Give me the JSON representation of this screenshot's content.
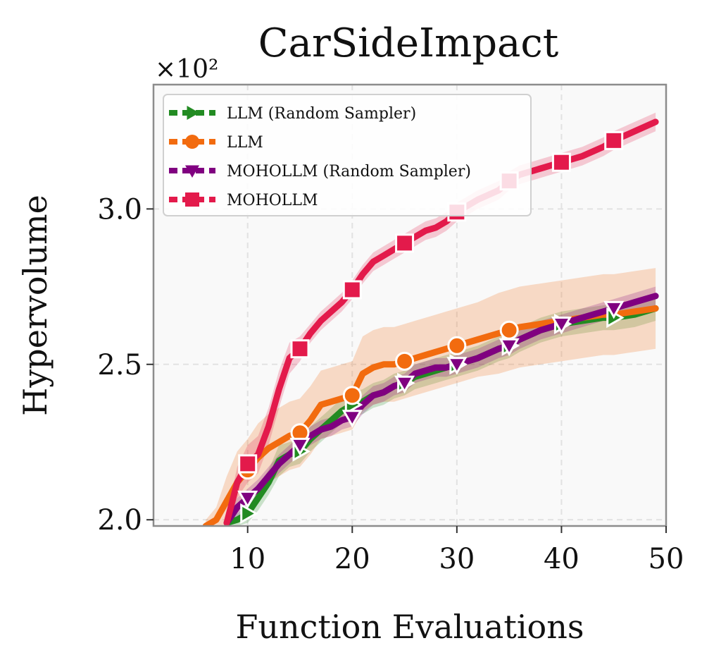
{
  "chart_data": {
    "type": "line",
    "title": "CarSideImpact",
    "xlabel": "Function Evaluations",
    "ylabel": "Hypervolume",
    "scale_label": "×10²",
    "xlim": [
      1,
      50
    ],
    "ylim": [
      1.98,
      3.4
    ],
    "x_ticks": [
      10,
      20,
      30,
      40,
      50
    ],
    "x_tick_labels": [
      "10",
      "20",
      "30",
      "40",
      "50"
    ],
    "y_ticks": [
      2.0,
      2.5,
      3.0
    ],
    "y_tick_labels": [
      "2.0",
      "2.5",
      "3.0"
    ],
    "grid": true,
    "legend_position": "top-left",
    "series": [
      {
        "name": "LLM (Random Sampler)",
        "color": "#228B22",
        "marker": "triangle-right",
        "dashed": true,
        "x": [
          8,
          9,
          10,
          11,
          12,
          13,
          14,
          15,
          16,
          17,
          18,
          19,
          20,
          21,
          22,
          23,
          24,
          25,
          26,
          27,
          28,
          29,
          30,
          32,
          34,
          35,
          36,
          38,
          40,
          42,
          44,
          45,
          47,
          49
        ],
        "values": [
          1.99,
          2.0,
          2.02,
          2.07,
          2.12,
          2.19,
          2.21,
          2.22,
          2.26,
          2.29,
          2.32,
          2.35,
          2.37,
          2.38,
          2.4,
          2.41,
          2.43,
          2.44,
          2.46,
          2.47,
          2.48,
          2.49,
          2.5,
          2.52,
          2.55,
          2.56,
          2.58,
          2.61,
          2.63,
          2.64,
          2.65,
          2.65,
          2.66,
          2.68
        ],
        "lower": [
          1.97,
          1.98,
          1.99,
          2.03,
          2.08,
          2.14,
          2.17,
          2.18,
          2.22,
          2.25,
          2.28,
          2.31,
          2.33,
          2.34,
          2.36,
          2.37,
          2.39,
          2.4,
          2.42,
          2.43,
          2.44,
          2.45,
          2.46,
          2.48,
          2.51,
          2.52,
          2.54,
          2.57,
          2.59,
          2.6,
          2.61,
          2.61,
          2.62,
          2.64
        ],
        "upper": [
          2.01,
          2.02,
          2.05,
          2.11,
          2.16,
          2.24,
          2.25,
          2.26,
          2.3,
          2.33,
          2.36,
          2.39,
          2.41,
          2.42,
          2.44,
          2.45,
          2.47,
          2.48,
          2.5,
          2.51,
          2.52,
          2.53,
          2.54,
          2.56,
          2.59,
          2.6,
          2.62,
          2.65,
          2.67,
          2.68,
          2.69,
          2.69,
          2.7,
          2.72
        ],
        "marker_x": [
          10,
          15,
          20,
          25,
          30,
          35,
          40,
          45
        ],
        "marker_values": [
          2.02,
          2.22,
          2.37,
          2.44,
          2.5,
          2.56,
          2.63,
          2.65
        ]
      },
      {
        "name": "LLM",
        "color": "#F26B0F",
        "marker": "circle",
        "dashed": true,
        "x": [
          6,
          7,
          8,
          9,
          10,
          11,
          12,
          13,
          14,
          15,
          16,
          17,
          18,
          19,
          20,
          21,
          22,
          23,
          24,
          25,
          26,
          27,
          28,
          29,
          30,
          32,
          34,
          35,
          36,
          38,
          40,
          42,
          44,
          45,
          47,
          49
        ],
        "values": [
          1.98,
          2.0,
          2.06,
          2.12,
          2.16,
          2.2,
          2.23,
          2.25,
          2.27,
          2.28,
          2.32,
          2.37,
          2.38,
          2.39,
          2.4,
          2.47,
          2.49,
          2.5,
          2.5,
          2.51,
          2.52,
          2.53,
          2.54,
          2.55,
          2.56,
          2.58,
          2.6,
          2.61,
          2.62,
          2.63,
          2.64,
          2.65,
          2.66,
          2.66,
          2.67,
          2.68
        ],
        "lower": [
          1.96,
          1.96,
          1.98,
          2.02,
          2.06,
          2.09,
          2.12,
          2.14,
          2.16,
          2.17,
          2.21,
          2.26,
          2.27,
          2.28,
          2.29,
          2.35,
          2.37,
          2.38,
          2.38,
          2.39,
          2.4,
          2.41,
          2.42,
          2.43,
          2.44,
          2.46,
          2.47,
          2.48,
          2.49,
          2.5,
          2.51,
          2.52,
          2.53,
          2.53,
          2.54,
          2.55
        ],
        "upper": [
          2.0,
          2.04,
          2.14,
          2.22,
          2.26,
          2.31,
          2.34,
          2.36,
          2.38,
          2.39,
          2.43,
          2.48,
          2.49,
          2.5,
          2.51,
          2.59,
          2.61,
          2.62,
          2.62,
          2.63,
          2.64,
          2.65,
          2.66,
          2.67,
          2.68,
          2.7,
          2.73,
          2.74,
          2.75,
          2.76,
          2.77,
          2.78,
          2.79,
          2.79,
          2.8,
          2.81
        ],
        "marker_x": [
          10,
          15,
          20,
          25,
          30,
          35
        ],
        "marker_values": [
          2.16,
          2.28,
          2.4,
          2.51,
          2.56,
          2.61
        ]
      },
      {
        "name": "MOHOLLM (Random Sampler)",
        "color": "#800080",
        "marker": "triangle-down",
        "dashed": true,
        "x": [
          8,
          9,
          10,
          11,
          12,
          13,
          14,
          15,
          16,
          17,
          18,
          19,
          20,
          21,
          22,
          23,
          24,
          25,
          26,
          27,
          28,
          29,
          30,
          32,
          34,
          35,
          36,
          38,
          40,
          42,
          44,
          45,
          47,
          49
        ],
        "values": [
          1.99,
          2.04,
          2.07,
          2.1,
          2.14,
          2.18,
          2.21,
          2.24,
          2.27,
          2.29,
          2.3,
          2.32,
          2.33,
          2.37,
          2.4,
          2.41,
          2.43,
          2.44,
          2.47,
          2.48,
          2.49,
          2.49,
          2.5,
          2.52,
          2.55,
          2.56,
          2.58,
          2.61,
          2.63,
          2.65,
          2.67,
          2.68,
          2.7,
          2.72
        ],
        "lower": [
          1.97,
          2.01,
          2.04,
          2.07,
          2.11,
          2.15,
          2.18,
          2.21,
          2.24,
          2.26,
          2.27,
          2.29,
          2.3,
          2.34,
          2.37,
          2.38,
          2.4,
          2.41,
          2.44,
          2.45,
          2.46,
          2.46,
          2.47,
          2.49,
          2.52,
          2.53,
          2.55,
          2.58,
          2.6,
          2.62,
          2.64,
          2.65,
          2.67,
          2.69
        ],
        "upper": [
          2.01,
          2.07,
          2.1,
          2.13,
          2.17,
          2.21,
          2.24,
          2.27,
          2.3,
          2.32,
          2.33,
          2.35,
          2.36,
          2.4,
          2.43,
          2.44,
          2.46,
          2.47,
          2.5,
          2.51,
          2.52,
          2.52,
          2.53,
          2.55,
          2.58,
          2.59,
          2.61,
          2.64,
          2.66,
          2.68,
          2.7,
          2.71,
          2.73,
          2.75
        ],
        "marker_x": [
          10,
          15,
          20,
          25,
          30,
          35,
          40,
          45
        ],
        "marker_values": [
          2.07,
          2.24,
          2.33,
          2.44,
          2.5,
          2.56,
          2.63,
          2.68
        ]
      },
      {
        "name": "MOHOLLM",
        "color": "#E31A4B",
        "marker": "square",
        "dashed": true,
        "x": [
          8,
          9,
          10,
          11,
          12,
          13,
          14,
          15,
          16,
          17,
          18,
          19,
          20,
          21,
          22,
          23,
          24,
          25,
          26,
          27,
          28,
          29,
          30,
          32,
          34,
          35,
          36,
          38,
          40,
          42,
          44,
          45,
          47,
          49
        ],
        "values": [
          1.99,
          2.12,
          2.18,
          2.21,
          2.3,
          2.42,
          2.52,
          2.55,
          2.6,
          2.64,
          2.67,
          2.7,
          2.74,
          2.79,
          2.83,
          2.85,
          2.87,
          2.89,
          2.91,
          2.93,
          2.94,
          2.96,
          2.99,
          3.03,
          3.06,
          3.09,
          3.11,
          3.13,
          3.15,
          3.17,
          3.2,
          3.22,
          3.25,
          3.28
        ],
        "lower": [
          1.97,
          2.07,
          2.12,
          2.15,
          2.24,
          2.36,
          2.47,
          2.51,
          2.57,
          2.61,
          2.64,
          2.67,
          2.71,
          2.76,
          2.8,
          2.82,
          2.84,
          2.86,
          2.88,
          2.9,
          2.91,
          2.93,
          2.96,
          3.0,
          3.03,
          3.06,
          3.08,
          3.1,
          3.12,
          3.14,
          3.17,
          3.19,
          3.22,
          3.25
        ],
        "upper": [
          2.01,
          2.17,
          2.24,
          2.27,
          2.36,
          2.48,
          2.57,
          2.59,
          2.63,
          2.67,
          2.7,
          2.73,
          2.77,
          2.82,
          2.86,
          2.88,
          2.9,
          2.92,
          2.94,
          2.96,
          2.97,
          2.99,
          3.02,
          3.06,
          3.09,
          3.12,
          3.14,
          3.16,
          3.18,
          3.2,
          3.23,
          3.25,
          3.28,
          3.31
        ],
        "marker_x": [
          10,
          15,
          20,
          25,
          30,
          35,
          40,
          45
        ],
        "marker_values": [
          2.18,
          2.55,
          2.74,
          2.89,
          2.99,
          3.09,
          3.15,
          3.22
        ]
      }
    ]
  }
}
